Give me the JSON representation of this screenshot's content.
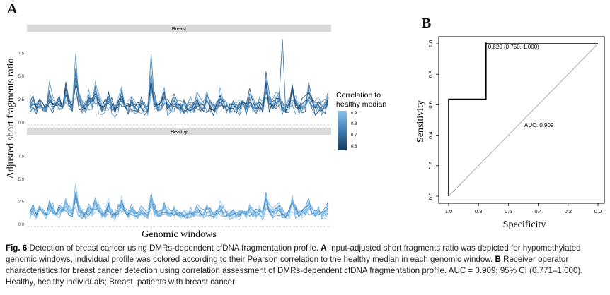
{
  "panelA": {
    "letter": "A",
    "ylabel": "Adjusted short fragments ratio",
    "xlabel": "Genomic windows",
    "facets": [
      "Breast",
      "Healthy"
    ],
    "yticks": [
      "0.0",
      "2.5",
      "5.0",
      "7.5"
    ],
    "legend": {
      "title_line1": "Correlation to",
      "title_line2": "healthy median",
      "ticks": [
        "0.9",
        "0.8",
        "0.7",
        "0.6"
      ]
    },
    "colors": {
      "dark": "#123a5e",
      "mid": "#3f7fb3",
      "light": "#7fbbe8",
      "strip": "#d9d9d9"
    }
  },
  "panelB": {
    "letter": "B",
    "xlabel": "Specificity",
    "ylabel": "Sensitivity",
    "xticks": [
      "1.0",
      "0.8",
      "0.6",
      "0.4",
      "0.2",
      "0.0"
    ],
    "yticks": [
      "0.0",
      "0.2",
      "0.4",
      "0.6",
      "0.8",
      "1.0"
    ],
    "point_label": "0.820 (0.750, 1.000)",
    "auc_label": "AUC: 0.909"
  },
  "chart_data": [
    {
      "type": "line",
      "facet": "Breast",
      "xlabel": "Genomic windows",
      "ylabel": "Adjusted short fragments ratio",
      "ylim": [
        0,
        9.5
      ],
      "legend": "right",
      "series_summary": "multiple sample profiles colored by correlation to healthy median (0.6–0.9)",
      "baseline": [
        1.7,
        2.1,
        1.6,
        2.4,
        1.8,
        1.5,
        2.8,
        2.0,
        1.6,
        2.2,
        1.9,
        3.2,
        2.1,
        1.7,
        4.8,
        2.6,
        1.8,
        1.6,
        2.4,
        2.0,
        3.4,
        2.2,
        1.6,
        1.9,
        2.7,
        1.8,
        1.5,
        2.1,
        3.0,
        1.9,
        1.7,
        2.3,
        1.6,
        1.5,
        2.0,
        1.8,
        1.6,
        4.1,
        2.3,
        1.7,
        1.9,
        2.6,
        1.8,
        1.6,
        2.2,
        1.7,
        1.6,
        2.0,
        1.5,
        1.8,
        1.6,
        2.1,
        1.7,
        1.8,
        2.4,
        1.9,
        1.5,
        1.7,
        2.6,
        2.0,
        1.7,
        1.6,
        1.9,
        1.6,
        1.8,
        2.2,
        1.6,
        2.5,
        1.8,
        1.7,
        2.0,
        1.6,
        3.9,
        2.3,
        1.8,
        2.1,
        2.6,
        1.7,
        1.6,
        1.9,
        3.4,
        2.1,
        1.7,
        1.8,
        2.0,
        3.1,
        2.2,
        1.7,
        2.0,
        1.6,
        1.8,
        2.4
      ]
    },
    {
      "type": "line",
      "facet": "Healthy",
      "xlabel": "Genomic windows",
      "ylabel": "Adjusted short fragments ratio",
      "ylim": [
        0,
        9.5
      ],
      "series_summary": "multiple healthy profiles with high correlation to healthy median",
      "baseline": [
        1.3,
        1.6,
        1.1,
        1.9,
        1.4,
        1.0,
        2.0,
        1.5,
        1.2,
        1.6,
        1.3,
        2.2,
        1.5,
        1.2,
        3.3,
        1.8,
        1.2,
        1.1,
        1.7,
        1.4,
        2.3,
        1.6,
        1.1,
        1.3,
        1.9,
        1.2,
        1.0,
        1.5,
        2.1,
        1.3,
        1.1,
        1.6,
        1.1,
        1.0,
        1.4,
        1.2,
        1.1,
        2.5,
        1.6,
        1.2,
        1.3,
        1.8,
        1.2,
        1.1,
        1.5,
        1.2,
        1.1,
        1.4,
        1.0,
        1.2,
        1.1,
        1.5,
        1.2,
        1.2,
        1.7,
        1.3,
        1.0,
        1.2,
        1.8,
        1.4,
        1.2,
        1.1,
        1.3,
        1.1,
        1.2,
        1.5,
        1.1,
        1.7,
        1.3,
        1.2,
        1.4,
        1.1,
        2.6,
        1.6,
        1.3,
        1.5,
        1.8,
        1.2,
        1.1,
        1.3,
        2.4,
        1.5,
        1.2,
        1.3,
        1.4,
        2.2,
        1.6,
        1.2,
        1.4,
        1.1,
        1.3,
        1.9
      ]
    },
    {
      "type": "line",
      "title": "",
      "xlabel": "Specificity",
      "ylabel": "Sensitivity",
      "xlim": [
        1.0,
        0.0
      ],
      "ylim": [
        0.0,
        1.0
      ],
      "roc_points": [
        [
          1.0,
          0.0
        ],
        [
          1.0,
          0.636
        ],
        [
          0.75,
          0.636
        ],
        [
          0.75,
          1.0
        ],
        [
          0.0,
          1.0
        ]
      ],
      "reference_line": [
        [
          1.0,
          0.0
        ],
        [
          0.0,
          1.0
        ]
      ],
      "highlight_point": {
        "specificity": 0.75,
        "sensitivity": 1.0,
        "label": "0.820 (0.750, 1.000)"
      },
      "annotation": "AUC: 0.909"
    }
  ],
  "caption": {
    "fig_label": "Fig. 6",
    "sentence1": " Detection of breast cancer using DMRs-dependent cfDNA fragmentation profile. ",
    "a_label": "A",
    "sentence2": " Input-adjusted short fragments ratio was depicted for hypomethylated genomic windows, individual profile was colored according to their Pearson correlation to the healthy median in each genomic window. ",
    "b_label": "B",
    "sentence3": " Receiver operator characteristics for breast cancer detection using correlation assessment of DMRs-dependent cfDNA fragmentation profile. AUC = 0.909; 95% CI (0.771–1.000). Healthy, healthy individuals; Breast, patients with breast cancer"
  }
}
